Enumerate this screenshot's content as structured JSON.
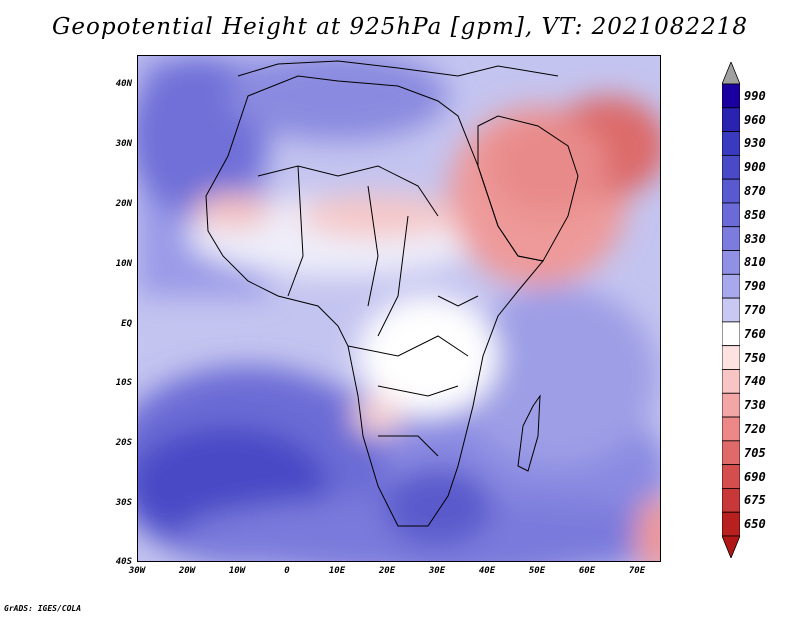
{
  "title": "Geopotential Height at 925hPa [gpm], VT: 2021082218",
  "footer": "GrADS: IGES/COLA",
  "map": {
    "region": "Africa and Middle East",
    "variable": "geopotential height",
    "level": "925hPa",
    "lat_labels": [
      "40N",
      "30N",
      "20N",
      "10N",
      "EQ",
      "10S",
      "20S",
      "30S",
      "40S"
    ],
    "lon_labels": [
      "30W",
      "20W",
      "10W",
      "0",
      "10E",
      "20E",
      "30E",
      "40E",
      "50E",
      "60E",
      "70E"
    ],
    "lat_range": [
      -40,
      45
    ],
    "lon_range": [
      -30,
      75
    ]
  },
  "colorbar": {
    "levels": [
      "990",
      "960",
      "930",
      "900",
      "870",
      "850",
      "830",
      "810",
      "790",
      "770",
      "760",
      "750",
      "740",
      "730",
      "720",
      "705",
      "690",
      "675",
      "650"
    ],
    "colors": [
      "#1a00a0",
      "#2a22b0",
      "#3a3ac0",
      "#4a4ac8",
      "#5a5ad0",
      "#6a6ad8",
      "#7c7cde",
      "#9090e4",
      "#a8a8ec",
      "#c8c8f2",
      "#ffffff",
      "#fde2e2",
      "#f8c4c4",
      "#f2a6a6",
      "#ec8888",
      "#e06a6a",
      "#d44e4e",
      "#c83838",
      "#b82020"
    ],
    "top_arrow_color": "#a0a0a0",
    "bottom_arrow_color": "#b01818"
  }
}
